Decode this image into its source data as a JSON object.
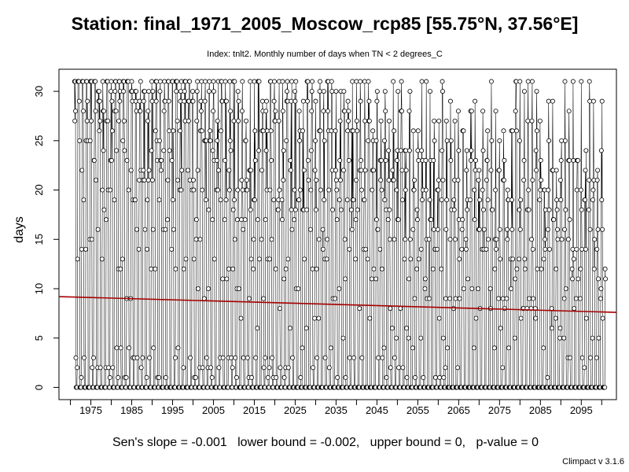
{
  "chart_data": {
    "type": "line",
    "title": "Station: final_1971_2005_Moscow_rcp85 [55.75°N, 37.56°E]",
    "subtitle": "Index: tnlt2. Monthly number of days when TN < 2 degrees_C",
    "xlabel": "",
    "ylabel": "days",
    "xlim": [
      1967.2,
      2103.6
    ],
    "ylim": [
      -1.24,
      32.24
    ],
    "x_ticks": [
      1975,
      1985,
      1995,
      2005,
      2015,
      2025,
      2035,
      2045,
      2055,
      2065,
      2075,
      2085,
      2095
    ],
    "x_ticks_minor": [
      1970,
      1980,
      1990,
      2000,
      2010,
      2020,
      2030,
      2040,
      2050,
      2060,
      2070,
      2080,
      2090,
      2100
    ],
    "y_ticks": [
      0,
      5,
      10,
      15,
      20,
      25,
      30
    ],
    "grid": false,
    "series": [
      {
        "marker": "open-circle",
        "x_start": 1971,
        "x_end": 2100,
        "step": "monthly",
        "color": "#000000",
        "seasonal_profile_1971_2005": [
          31,
          28,
          30,
          20,
          2,
          0,
          0,
          0,
          1,
          18,
          27,
          31
        ],
        "seasonal_profile_2095_2100": [
          26,
          22,
          17,
          9,
          0,
          0,
          0,
          0,
          0,
          4,
          12,
          18
        ]
      },
      {
        "name": "",
        "type": "trend",
        "color": "#a50000",
        "x": [
          1967.2,
          2103.6
        ],
        "y": [
          9.2,
          7.6
        ]
      }
    ],
    "annotations": {
      "footer": "Sen's slope = -0.001   lower bound = -0.002,   upper bound = 0,   p-value = 0",
      "version": "Climpact v 3.1.6"
    }
  }
}
